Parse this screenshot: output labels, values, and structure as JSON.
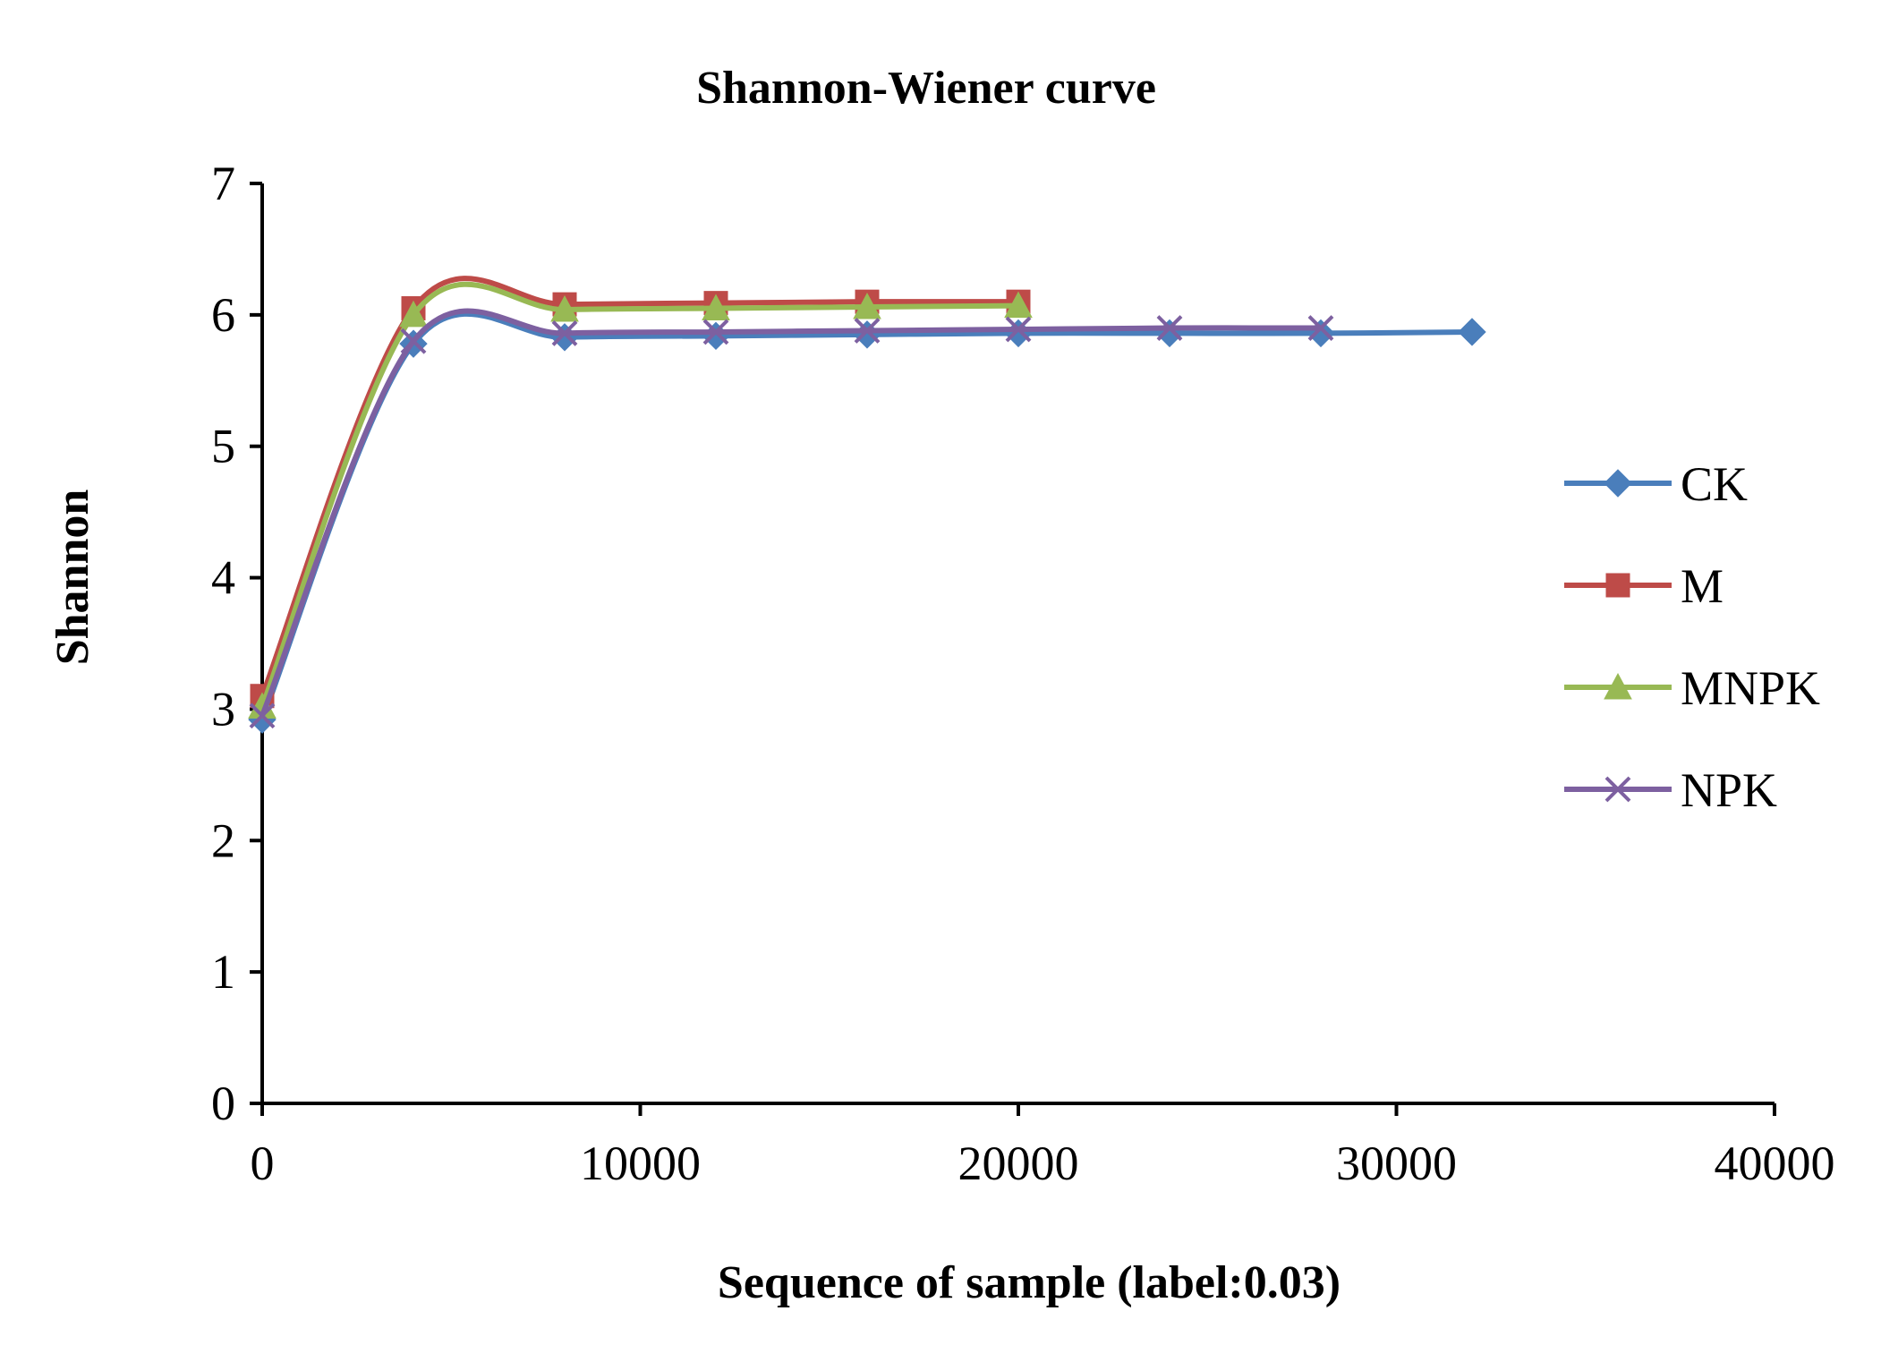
{
  "chart_data": {
    "type": "line",
    "title": "Shannon-Wiener curve",
    "xlabel": "Sequence of sample (label:0.03)",
    "ylabel": "Shannon",
    "xlim": [
      0,
      40000
    ],
    "ylim": [
      0,
      7
    ],
    "x_ticks": [
      "0",
      "10000",
      "20000",
      "30000",
      "40000"
    ],
    "y_ticks": [
      "0",
      "1",
      "2",
      "3",
      "4",
      "5",
      "6",
      "7"
    ],
    "grid": false,
    "smooth": true,
    "legend_position": "right",
    "series": [
      {
        "name": "CK",
        "color": "#4a7ebb",
        "marker": "diamond",
        "x": [
          0,
          4000,
          8000,
          12000,
          16000,
          20000,
          24000,
          28000,
          32000
        ],
        "y": [
          2.92,
          5.78,
          5.83,
          5.84,
          5.85,
          5.86,
          5.86,
          5.86,
          5.87
        ]
      },
      {
        "name": "M",
        "color": "#be4b48",
        "marker": "square",
        "x": [
          0,
          4000,
          8000,
          12000,
          16000,
          20000
        ],
        "y": [
          3.1,
          6.05,
          6.08,
          6.09,
          6.1,
          6.1
        ]
      },
      {
        "name": "MNPK",
        "color": "#98b954",
        "marker": "triangle",
        "x": [
          0,
          4000,
          8000,
          12000,
          16000,
          20000
        ],
        "y": [
          3.02,
          6.0,
          6.04,
          6.05,
          6.06,
          6.07
        ]
      },
      {
        "name": "NPK",
        "color": "#7d60a0",
        "marker": "x",
        "x": [
          0,
          4000,
          8000,
          12000,
          16000,
          20000,
          24000,
          28000
        ],
        "y": [
          2.95,
          5.8,
          5.86,
          5.87,
          5.88,
          5.89,
          5.9,
          5.9
        ]
      }
    ]
  }
}
